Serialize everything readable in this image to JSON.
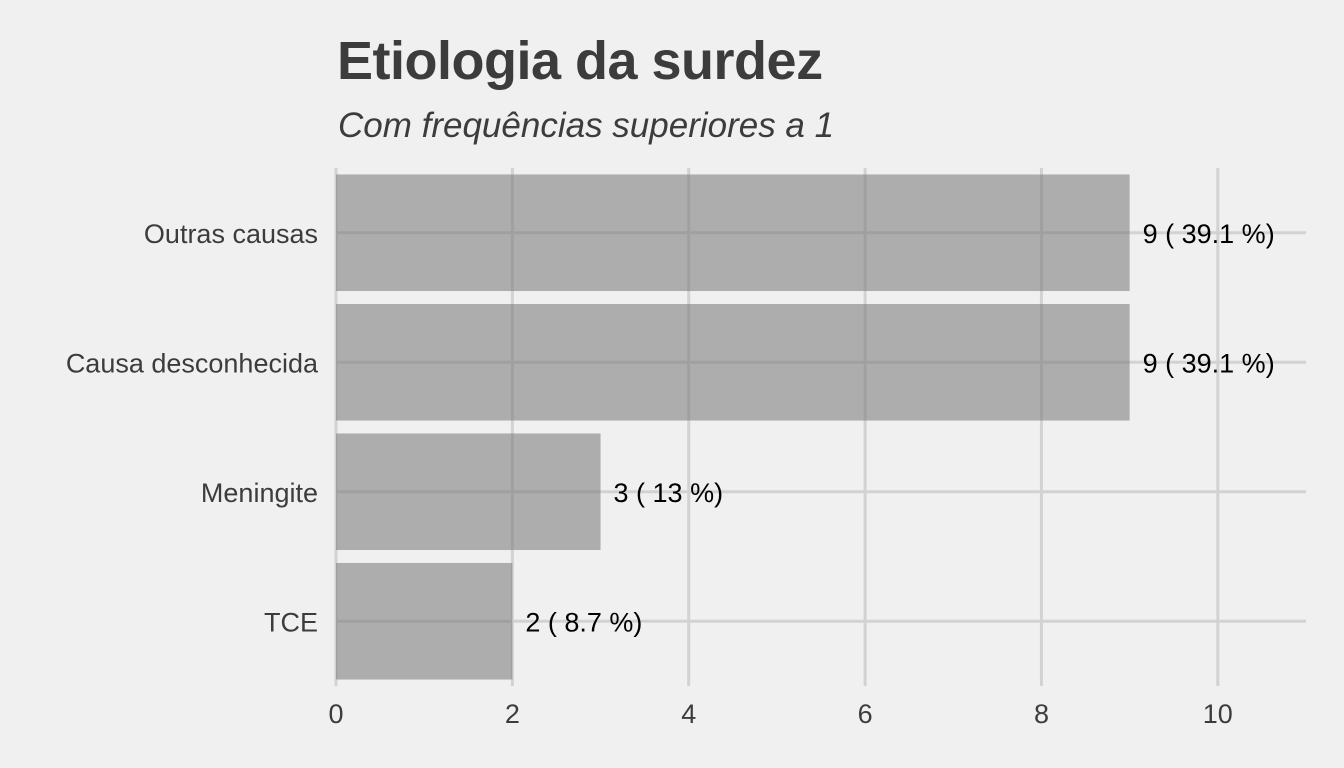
{
  "chart_data": {
    "type": "bar",
    "orientation": "horizontal",
    "title": "Etiologia da surdez",
    "subtitle": "Com frequências superiores a 1",
    "xlabel": "",
    "ylabel": "",
    "categories": [
      "Outras causas",
      "Causa desconhecida",
      "Meningite",
      "TCE"
    ],
    "values": [
      9,
      9,
      3,
      2
    ],
    "data_labels": [
      "9 ( 39.1 %)",
      "9 ( 39.1 %)",
      "3 ( 13 %)",
      "2 ( 8.7 %)"
    ],
    "xlim": [
      0,
      11
    ],
    "x_ticks": [
      0,
      2,
      4,
      6,
      8,
      10
    ],
    "grid": true,
    "legend": "none",
    "colors": {
      "background": "#f0f0f0",
      "bar": "#a3a3a3",
      "grid": "#d2d2d2",
      "text": "#3c3c3c",
      "data_label": "#000000"
    }
  }
}
